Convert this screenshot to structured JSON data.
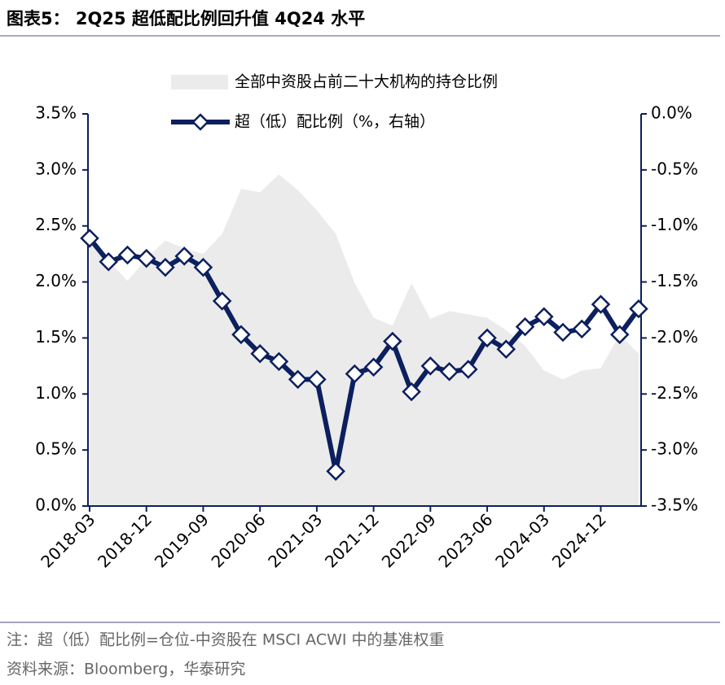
{
  "chart_data": {
    "type": "combo",
    "title": "图表5： 2Q25 超低配比例回升值 4Q24 水平",
    "note": "注：超（低）配比例=仓位-中资股在 MSCI ACWI 中的基准权重",
    "source": "资料来源：Bloomberg，华泰研究",
    "categories": [
      "2018-03",
      null,
      null,
      "2018-12",
      null,
      null,
      "2019-09",
      null,
      null,
      "2020-06",
      null,
      null,
      "2021-03",
      null,
      null,
      "2021-12",
      null,
      null,
      "2022-09",
      null,
      null,
      "2023-06",
      null,
      null,
      "2024-03",
      null,
      null,
      "2024-12",
      null,
      null
    ],
    "series": [
      {
        "name": "全部中资股占前二十大机构的持仓比例",
        "type": "area",
        "color": "#ebebeb",
        "axis": "y",
        "values": [
          2.41,
          2.19,
          2.01,
          2.21,
          2.37,
          2.3,
          2.25,
          2.43,
          2.83,
          2.8,
          2.96,
          2.82,
          2.64,
          2.43,
          1.99,
          1.68,
          1.61,
          1.99,
          1.67,
          1.74,
          1.71,
          1.68,
          1.57,
          1.43,
          1.21,
          1.13,
          1.21,
          1.23,
          1.53,
          1.36
        ]
      },
      {
        "name": "超（低）配比例（%，右轴）",
        "type": "line",
        "color": "#0c1f5e",
        "axis": "y2",
        "values": [
          -1.11,
          -1.32,
          -1.26,
          -1.29,
          -1.37,
          -1.27,
          -1.37,
          -1.67,
          -1.97,
          -2.14,
          -2.21,
          -2.37,
          -2.37,
          -3.19,
          -2.32,
          -2.26,
          -2.03,
          -2.48,
          -2.25,
          -2.3,
          -2.28,
          -2.0,
          -2.1,
          -1.9,
          -1.81,
          -1.95,
          -1.92,
          -1.7,
          -1.97,
          -1.74
        ]
      }
    ],
    "ylim": [
      0,
      3.5
    ],
    "yticks": [
      {
        "value": 0,
        "label": "0.0%"
      },
      {
        "value": 0.5,
        "label": "0.5%"
      },
      {
        "value": 1,
        "label": "1.0%"
      },
      {
        "value": 1.5,
        "label": "1.5%"
      },
      {
        "value": 2,
        "label": "2.0%"
      },
      {
        "value": 2.5,
        "label": "2.5%"
      },
      {
        "value": 3,
        "label": "3.0%"
      },
      {
        "value": 3.5,
        "label": "3.5%"
      }
    ],
    "y2lim": [
      -3.5,
      0
    ],
    "y2ticks": [
      {
        "value": 0,
        "label": "0.0%"
      },
      {
        "value": -0.5,
        "label": "-0.5%"
      },
      {
        "value": -1,
        "label": "-1.0%"
      },
      {
        "value": -1.5,
        "label": "-1.5%"
      },
      {
        "value": -2,
        "label": "-2.0%"
      },
      {
        "value": -2.5,
        "label": "-2.5%"
      },
      {
        "value": -3,
        "label": "-3.0%"
      },
      {
        "value": -3.5,
        "label": "-3.5%"
      }
    ]
  }
}
